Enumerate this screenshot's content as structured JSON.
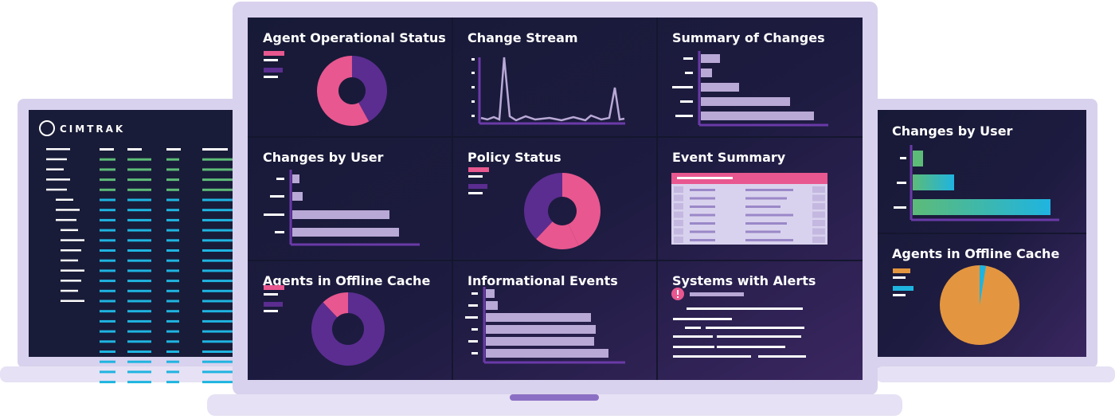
{
  "left_screen": {
    "logo": "CIMTRAK"
  },
  "center_screen": {
    "panels": [
      "Agent Operational Status",
      "Change Stream",
      "Summary of Changes",
      "Changes by User",
      "Policy Status",
      "Event Summary",
      "Agents in Offline Cache",
      "Informational Events",
      "Systems with Alerts"
    ]
  },
  "right_screen": {
    "panels": [
      "Changes by User",
      "Agents in Offline Cache"
    ]
  }
}
